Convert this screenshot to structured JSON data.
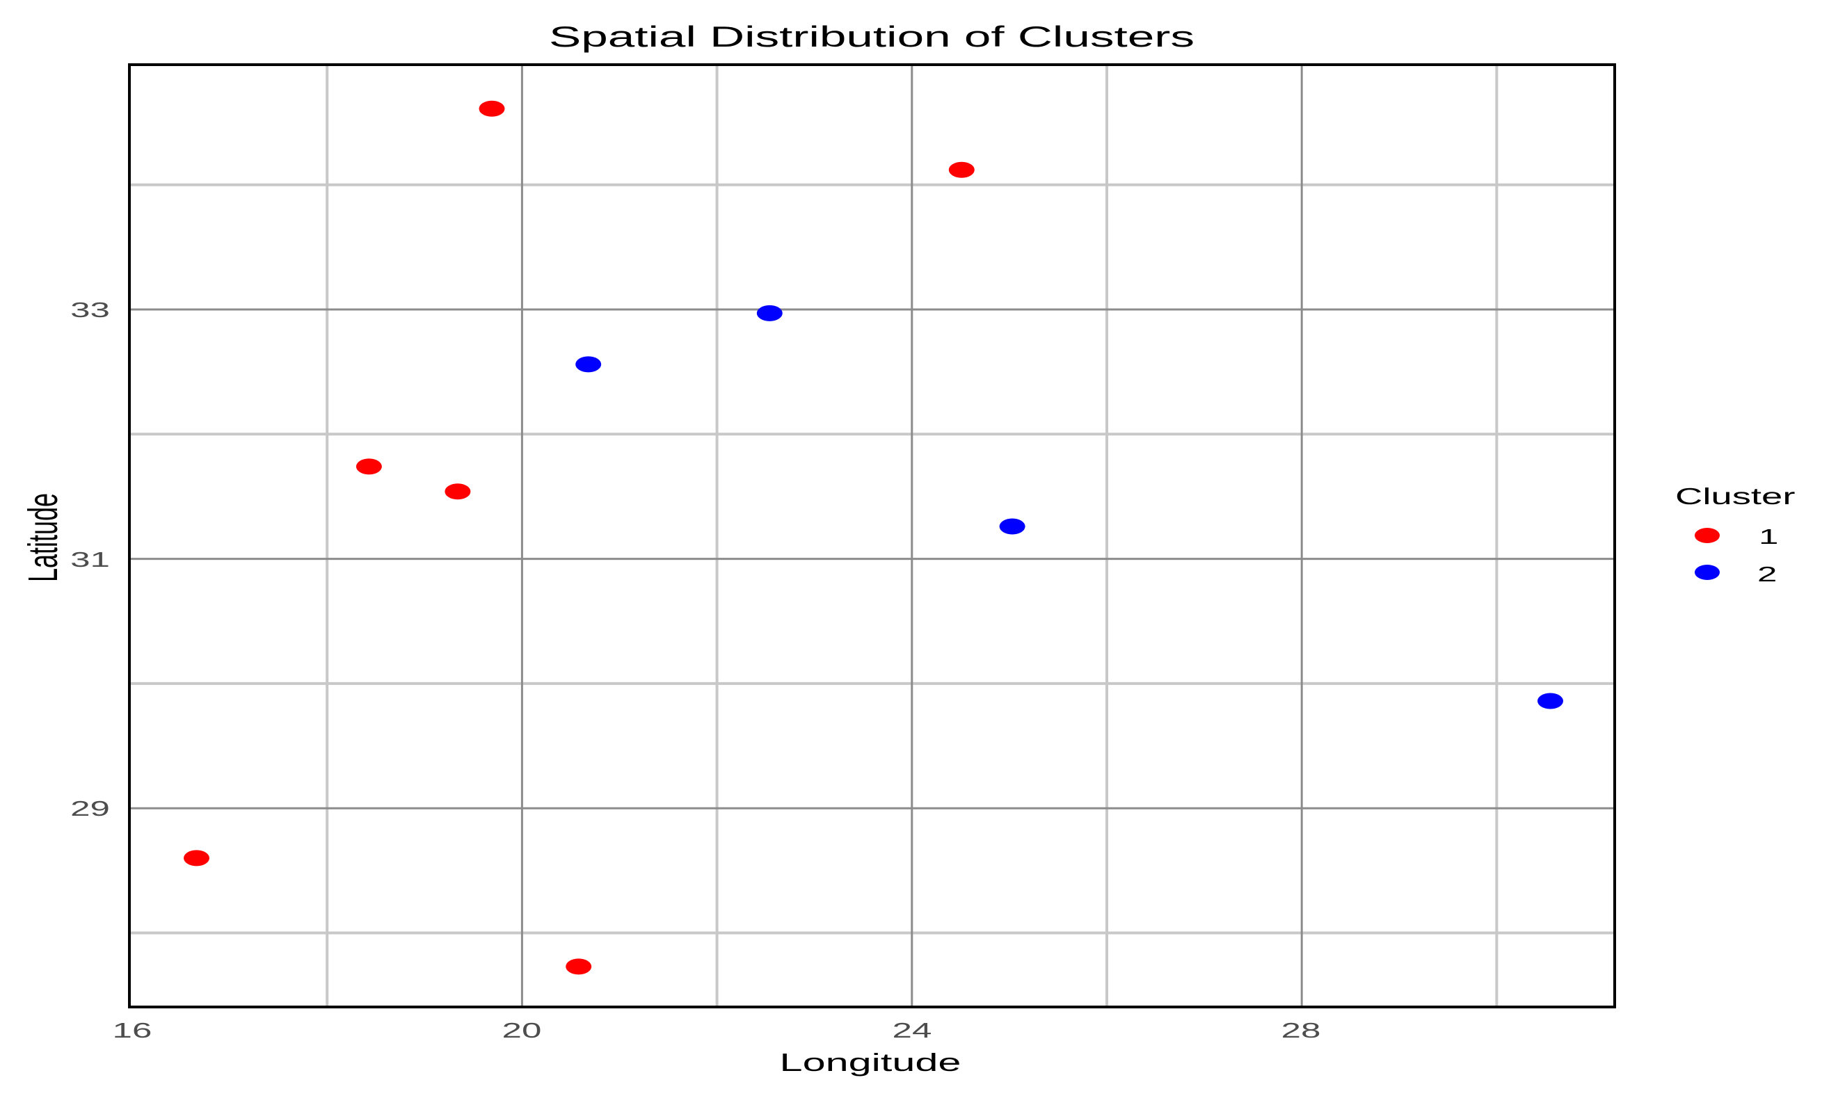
{
  "chart_data": {
    "type": "scatter",
    "title": "Spatial Distribution of Clusters",
    "xlabel": "Longitude",
    "ylabel": "Latitude",
    "xlim": [
      15.97,
      31.2
    ],
    "ylim": [
      27.4,
      34.96
    ],
    "x_ticks": [
      16,
      20,
      24,
      28
    ],
    "y_ticks": [
      29,
      31,
      33
    ],
    "x_minor_grid": [
      18,
      22,
      26,
      30
    ],
    "y_minor_grid": [
      28,
      30,
      32,
      34
    ],
    "grid": true,
    "legend": {
      "title": "Cluster",
      "position": "right",
      "entries": [
        {
          "label": "1",
          "color": "#ff0000"
        },
        {
          "label": "2",
          "color": "#0000ff"
        }
      ]
    },
    "series": [
      {
        "name": "1",
        "color": "#ff0000",
        "points": [
          {
            "x": 19.69,
            "y": 34.61
          },
          {
            "x": 24.51,
            "y": 34.12
          },
          {
            "x": 18.43,
            "y": 31.74
          },
          {
            "x": 19.34,
            "y": 31.54
          },
          {
            "x": 16.66,
            "y": 28.6
          },
          {
            "x": 20.58,
            "y": 27.73
          }
        ]
      },
      {
        "name": "2",
        "color": "#0000ff",
        "points": [
          {
            "x": 22.54,
            "y": 32.97
          },
          {
            "x": 20.68,
            "y": 32.56
          },
          {
            "x": 25.03,
            "y": 31.26
          },
          {
            "x": 30.55,
            "y": 29.86
          }
        ]
      }
    ]
  },
  "labels": {
    "title": "Spatial Distribution of Clusters",
    "xlabel": "Longitude",
    "ylabel": "Latitude",
    "x_ticks": [
      "16",
      "20",
      "24",
      "28"
    ],
    "y_ticks": [
      "33",
      "31",
      "29"
    ],
    "legend_title": "Cluster",
    "legend_items": [
      "1",
      "2"
    ]
  },
  "colors": {
    "cluster_1": "#ff0000",
    "cluster_2": "#0000ff",
    "major_grid": "#8c8c8c",
    "minor_grid": "#c8c8c8",
    "panel_border": "#000000"
  }
}
